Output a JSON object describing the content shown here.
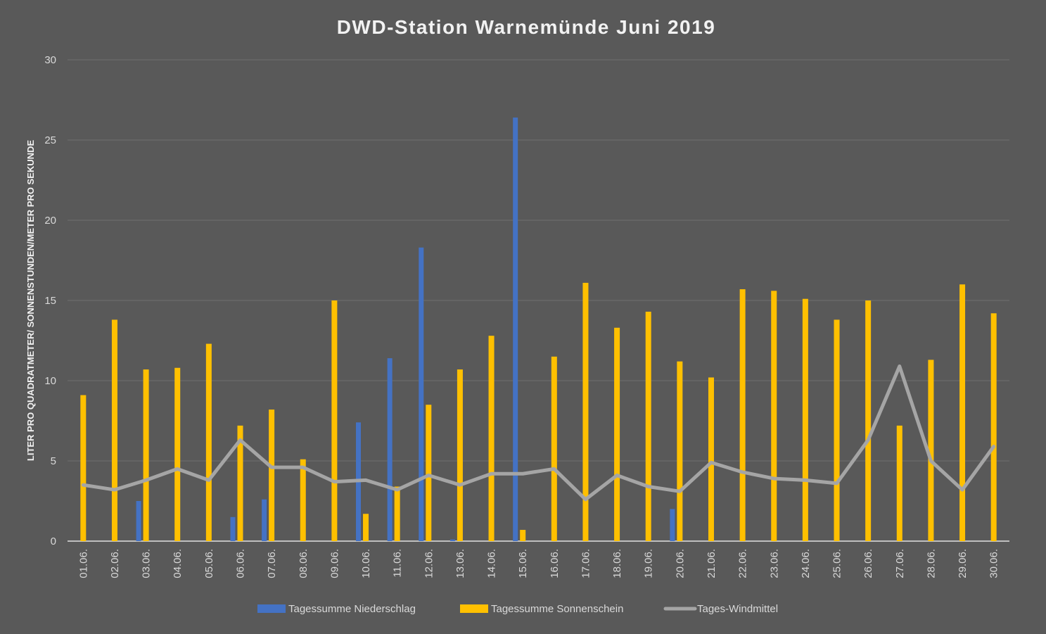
{
  "chart_data": {
    "type": "bar",
    "title": "DWD-Station Warnemünde Juni 2019",
    "xlabel": "",
    "ylabel": "LITER PRO QUADRATMETER/ SONNENSTUNDEN/METER PRO SEKUNDE",
    "ylim": [
      0,
      30
    ],
    "yticks": [
      "0",
      "5",
      "10",
      "15",
      "20",
      "25",
      "30"
    ],
    "grid": true,
    "legend_position": "bottom",
    "categories": [
      "01.06.",
      "02.06.",
      "03.06.",
      "04.06.",
      "05.06.",
      "06.06.",
      "07.06.",
      "08.06.",
      "09.06.",
      "10.06.",
      "11.06.",
      "12.06.",
      "13.06.",
      "14.06.",
      "15.06.",
      "16.06.",
      "17.06.",
      "18.06.",
      "19.06.",
      "20.06.",
      "21.06.",
      "22.06.",
      "23.06.",
      "24.06.",
      "25.06.",
      "26.06.",
      "27.06.",
      "28.06.",
      "29.06.",
      "30.06."
    ],
    "series": [
      {
        "name": "Tagessumme Niederschlag",
        "type": "bar",
        "color": "#4472C4",
        "values": [
          0,
          0,
          2.5,
          0,
          0,
          1.5,
          2.6,
          0,
          0,
          7.4,
          11.4,
          18.3,
          0.1,
          0,
          26.4,
          0,
          0,
          0,
          0,
          2.0,
          0,
          0,
          0,
          0,
          0,
          0,
          0,
          0,
          0,
          0
        ]
      },
      {
        "name": "Tagessumme Sonnenschein",
        "type": "bar",
        "color": "#FFC000",
        "values": [
          9.1,
          13.8,
          10.7,
          10.8,
          12.3,
          7.2,
          8.2,
          5.1,
          15.0,
          1.7,
          3.4,
          8.5,
          10.7,
          12.8,
          0.7,
          11.5,
          16.1,
          13.3,
          14.3,
          11.2,
          10.2,
          15.7,
          15.6,
          15.1,
          13.8,
          15.0,
          7.2,
          11.3,
          16.0,
          14.2
        ]
      },
      {
        "name": "Tages-Windmittel",
        "type": "line",
        "color": "#A5A5A5",
        "values": [
          3.5,
          3.2,
          3.8,
          4.5,
          3.8,
          6.3,
          4.6,
          4.6,
          3.7,
          3.8,
          3.2,
          4.1,
          3.5,
          4.2,
          4.2,
          4.5,
          2.6,
          4.1,
          3.4,
          3.1,
          4.9,
          4.3,
          3.9,
          3.8,
          3.6,
          6.3,
          10.9,
          5.0,
          3.2,
          5.9
        ]
      }
    ]
  }
}
